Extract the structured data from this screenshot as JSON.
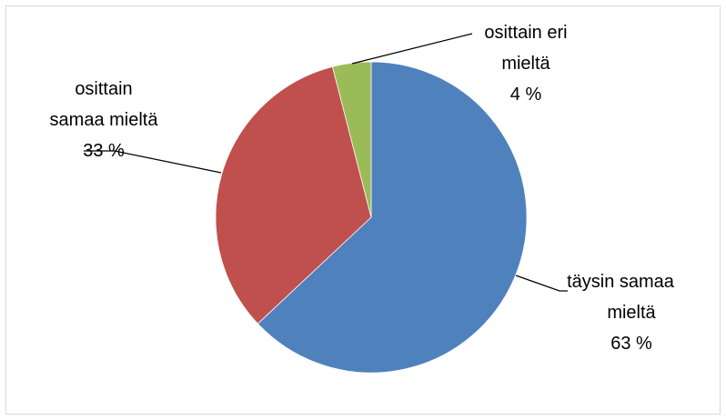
{
  "chart_data": {
    "type": "pie",
    "title": "",
    "slices": [
      {
        "label_lines": [
          "täysin samaa",
          "mieltä"
        ],
        "value": 63,
        "percent_label": "63 %",
        "color": "#4f81bd"
      },
      {
        "label_lines": [
          "osittain",
          "samaa mieltä"
        ],
        "value": 33,
        "percent_label": "33 %",
        "color": "#c0504d"
      },
      {
        "label_lines": [
          "osittain eri",
          "mieltä"
        ],
        "value": 4,
        "percent_label": "4 %",
        "color": "#9bbb59"
      }
    ],
    "legend": "none",
    "labels": "outside-with-leader-lines"
  }
}
